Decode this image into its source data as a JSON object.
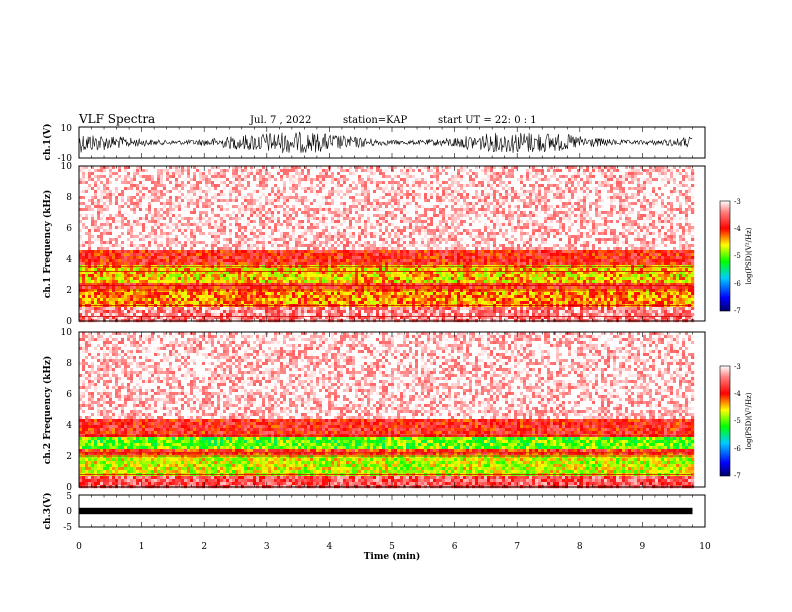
{
  "header": {
    "title": "VLF Spectra",
    "date": "Jul. 7 , 2022",
    "station": "station=KAP",
    "start": "start UT = 22: 0 : 1"
  },
  "colors": {
    "low": "#0000aa",
    "mid": "#00dd00",
    "high_mid": "#ffff00",
    "high": "#ff0000",
    "saturated": "#ffffff",
    "waveform": "#000000"
  },
  "chart_data": [
    {
      "type": "line",
      "name": "waveform-ch1",
      "ylabel": "ch.1(V)",
      "ylim": [
        -10,
        10
      ],
      "yticks": [
        "10",
        "-10"
      ],
      "xlim": [
        0,
        10
      ],
      "x_end_data": 9.8,
      "amplitude_typical": 7
    },
    {
      "type": "heatmap",
      "name": "spectrogram-ch1",
      "ylabel": "ch.1 Frequency (kHz)",
      "ylim": [
        0,
        10
      ],
      "yticks": [
        "0",
        "2",
        "4",
        "6",
        "8",
        "10"
      ],
      "xlim": [
        0,
        10
      ],
      "x_end_data": 9.8,
      "colorbar": {
        "label": "log(PSD)(V²/Hz)",
        "range": [
          -7,
          -3
        ],
        "ticks": [
          "-3",
          "-4",
          "-5",
          "-6",
          "-7"
        ]
      },
      "bands_khz": [
        {
          "from": 0.0,
          "to": 0.9,
          "level": -3.4
        },
        {
          "from": 0.9,
          "to": 2.0,
          "level": -4.3
        },
        {
          "from": 2.0,
          "to": 2.4,
          "level": -3.9
        },
        {
          "from": 2.4,
          "to": 3.6,
          "level": -4.5
        },
        {
          "from": 3.6,
          "to": 4.5,
          "level": -3.9
        },
        {
          "from": 4.5,
          "to": 10.0,
          "level": -3.1
        }
      ],
      "lines_khz": [
        0.3,
        1.0,
        2.0,
        2.3,
        3.2,
        3.5
      ]
    },
    {
      "type": "heatmap",
      "name": "spectrogram-ch2",
      "ylabel": "ch.2 Frequency (kHz)",
      "ylim": [
        0,
        10
      ],
      "yticks": [
        "0",
        "2",
        "4",
        "6",
        "8",
        "10"
      ],
      "xlim": [
        0,
        10
      ],
      "x_end_data": 9.8,
      "colorbar": {
        "label": "log(PSD)(V²/Hz)",
        "range": [
          -7,
          -3
        ],
        "ticks": [
          "-3",
          "-4",
          "-5",
          "-6",
          "-7"
        ]
      },
      "bands_khz": [
        {
          "from": 0.0,
          "to": 0.8,
          "level": -3.6
        },
        {
          "from": 0.8,
          "to": 2.0,
          "level": -4.7
        },
        {
          "from": 2.0,
          "to": 2.4,
          "level": -4.0
        },
        {
          "from": 2.4,
          "to": 3.3,
          "level": -5.0
        },
        {
          "from": 3.3,
          "to": 4.4,
          "level": -3.9
        },
        {
          "from": 4.4,
          "to": 10.0,
          "level": -3.1
        }
      ],
      "lines_khz": [
        0.8,
        2.0,
        2.2,
        3.3
      ]
    },
    {
      "type": "line",
      "name": "waveform-ch3",
      "ylabel": "ch.3(V)",
      "ylim": [
        -5,
        5
      ],
      "yticks": [
        "5",
        "0",
        "-5"
      ],
      "xlim": [
        0,
        10
      ],
      "x_end_data": 9.8,
      "amplitude_typical": 1
    }
  ],
  "xaxis": {
    "label": "Time (min)",
    "ticks": [
      "0",
      "1",
      "2",
      "3",
      "4",
      "5",
      "6",
      "7",
      "8",
      "9",
      "10"
    ]
  }
}
